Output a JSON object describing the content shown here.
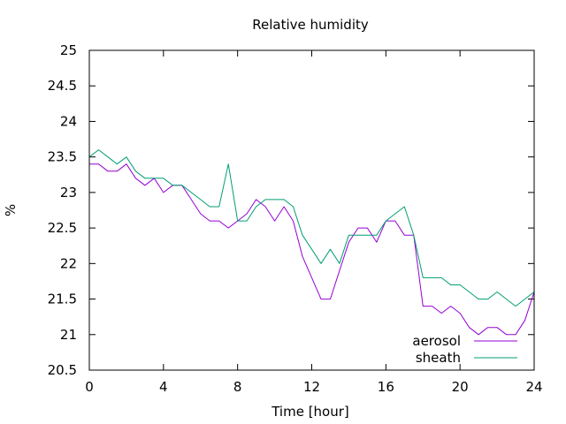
{
  "chart_data": {
    "type": "line",
    "title": "Relative humidity",
    "xlabel": "Time [hour]",
    "ylabel": "%",
    "xlim": [
      0,
      24
    ],
    "ylim": [
      20.5,
      25
    ],
    "xticks": [
      0,
      4,
      8,
      12,
      16,
      20,
      24
    ],
    "yticks": [
      20.5,
      21,
      21.5,
      22,
      22.5,
      23,
      23.5,
      24,
      24.5,
      25
    ],
    "grid": false,
    "legend_position": "bottom-right",
    "series": [
      {
        "name": "aerosol",
        "color": "#9400d3",
        "x": [
          0,
          0.5,
          1,
          1.5,
          2,
          2.5,
          3,
          3.5,
          4,
          4.5,
          5,
          5.5,
          6,
          6.5,
          7,
          7.5,
          8,
          8.5,
          9,
          9.5,
          10,
          10.5,
          11,
          11.5,
          12,
          12.5,
          13,
          13.5,
          14,
          14.5,
          15,
          15.5,
          16,
          16.5,
          17,
          17.5,
          18,
          18.5,
          19,
          19.5,
          20,
          20.5,
          21,
          21.5,
          22,
          22.5,
          23,
          23.5,
          24
        ],
        "y": [
          23.4,
          23.4,
          23.3,
          23.3,
          23.4,
          23.2,
          23.1,
          23.2,
          23.0,
          23.1,
          23.1,
          22.9,
          22.7,
          22.6,
          22.6,
          22.5,
          22.6,
          22.7,
          22.9,
          22.8,
          22.6,
          22.8,
          22.6,
          22.1,
          21.8,
          21.5,
          21.5,
          21.9,
          22.3,
          22.5,
          22.5,
          22.3,
          22.6,
          22.6,
          22.4,
          22.4,
          21.4,
          21.4,
          21.3,
          21.4,
          21.3,
          21.1,
          21.0,
          21.1,
          21.1,
          21.0,
          21.0,
          21.2,
          21.6
        ]
      },
      {
        "name": "sheath",
        "color": "#009e73",
        "x": [
          0,
          0.5,
          1,
          1.5,
          2,
          2.5,
          3,
          3.5,
          4,
          4.5,
          5,
          5.5,
          6,
          6.5,
          7,
          7.5,
          8,
          8.5,
          9,
          9.5,
          10,
          10.5,
          11,
          11.5,
          12,
          12.5,
          13,
          13.5,
          14,
          14.5,
          15,
          15.5,
          16,
          16.5,
          17,
          17.5,
          18,
          18.5,
          19,
          19.5,
          20,
          20.5,
          21,
          21.5,
          22,
          22.5,
          23,
          23.5,
          24
        ],
        "y": [
          23.5,
          23.6,
          23.5,
          23.4,
          23.5,
          23.3,
          23.2,
          23.2,
          23.2,
          23.1,
          23.1,
          23.0,
          22.9,
          22.8,
          22.8,
          23.4,
          22.6,
          22.6,
          22.8,
          22.9,
          22.9,
          22.9,
          22.8,
          22.4,
          22.2,
          22.0,
          22.2,
          22.0,
          22.4,
          22.4,
          22.4,
          22.4,
          22.6,
          22.7,
          22.8,
          22.4,
          21.8,
          21.8,
          21.8,
          21.7,
          21.7,
          21.6,
          21.5,
          21.5,
          21.6,
          21.5,
          21.4,
          21.5,
          21.6
        ]
      }
    ]
  }
}
